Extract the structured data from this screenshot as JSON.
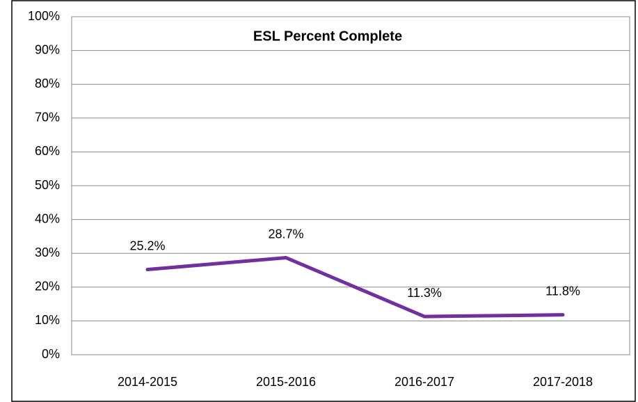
{
  "chart_data": {
    "type": "line",
    "title": "ESL Percent Complete",
    "categories": [
      "2014-2015",
      "2015-2016",
      "2016-2017",
      "2017-2018"
    ],
    "series": [
      {
        "name": "ESL Percent Complete",
        "color": "#7030a0",
        "values": [
          25.2,
          28.7,
          11.3,
          11.8
        ],
        "value_labels": [
          "25.2%",
          "28.7%",
          "11.3%",
          "11.8%"
        ]
      }
    ],
    "ylim": [
      0,
      100
    ],
    "yticks": [
      {
        "value": 0,
        "label": "0%"
      },
      {
        "value": 10,
        "label": "10%"
      },
      {
        "value": 20,
        "label": "20%"
      },
      {
        "value": 30,
        "label": "30%"
      },
      {
        "value": 40,
        "label": "40%"
      },
      {
        "value": 50,
        "label": "50%"
      },
      {
        "value": 60,
        "label": "60%"
      },
      {
        "value": 70,
        "label": "70%"
      },
      {
        "value": 80,
        "label": "80%"
      },
      {
        "value": 90,
        "label": "90%"
      },
      {
        "value": 100,
        "label": "100%"
      }
    ],
    "grid": true
  }
}
